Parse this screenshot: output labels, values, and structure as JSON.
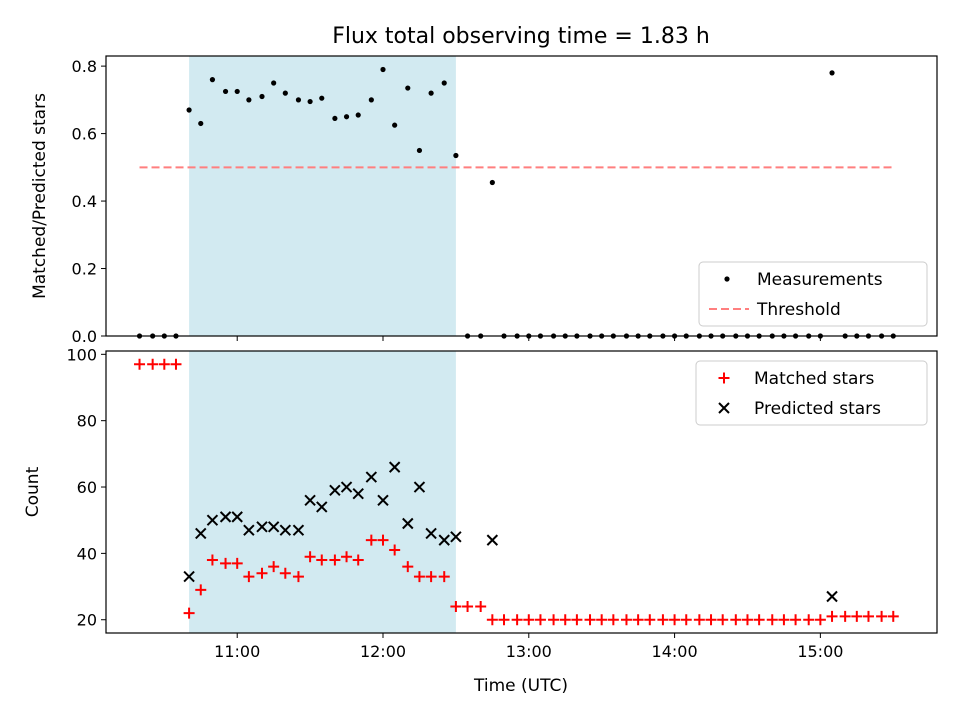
{
  "figure": {
    "title": "Flux total observing time = 1.83 h",
    "xlabel": "Time (UTC)",
    "xticks": [
      {
        "t": 11.0,
        "label": "11:00"
      },
      {
        "t": 12.0,
        "label": "12:00"
      },
      {
        "t": 13.0,
        "label": "13:00"
      },
      {
        "t": 14.0,
        "label": "14:00"
      },
      {
        "t": 15.0,
        "label": "15:00"
      }
    ],
    "xlim_hours": [
      10.1,
      15.8
    ],
    "shaded_window_hours": [
      10.67,
      12.5
    ],
    "colors": {
      "shade": "#add8e6",
      "matched": "#ff0000",
      "predicted": "#000000",
      "threshold": "#ff7f7f",
      "measurements": "#000000"
    }
  },
  "chart_data": [
    {
      "type": "scatter",
      "ylabel": "Matched/Predicted stars",
      "ylim": [
        0,
        0.83
      ],
      "yticks": [
        0.0,
        0.2,
        0.4,
        0.6,
        0.8
      ],
      "ytick_labels": [
        "0.0",
        "0.2",
        "0.4",
        "0.6",
        "0.8"
      ],
      "legend_position": "lower-right",
      "threshold": {
        "name": "Threshold",
        "value": 0.5,
        "x_range": [
          10.33,
          15.5
        ],
        "style": "dashed"
      },
      "series": [
        {
          "name": "Measurements",
          "marker": "dot",
          "points": [
            [
              10.33,
              0
            ],
            [
              10.42,
              0
            ],
            [
              10.5,
              0
            ],
            [
              10.58,
              0
            ],
            [
              10.67,
              0.67
            ],
            [
              10.75,
              0.63
            ],
            [
              10.83,
              0.76
            ],
            [
              10.92,
              0.725
            ],
            [
              11.0,
              0.725
            ],
            [
              11.08,
              0.7
            ],
            [
              11.17,
              0.71
            ],
            [
              11.25,
              0.75
            ],
            [
              11.33,
              0.72
            ],
            [
              11.42,
              0.7
            ],
            [
              11.5,
              0.695
            ],
            [
              11.58,
              0.705
            ],
            [
              11.67,
              0.645
            ],
            [
              11.75,
              0.65
            ],
            [
              11.83,
              0.655
            ],
            [
              11.92,
              0.7
            ],
            [
              12.0,
              0.79
            ],
            [
              12.08,
              0.625
            ],
            [
              12.17,
              0.735
            ],
            [
              12.25,
              0.55
            ],
            [
              12.33,
              0.72
            ],
            [
              12.42,
              0.75
            ],
            [
              12.5,
              0.535
            ],
            [
              12.58,
              0
            ],
            [
              12.67,
              0
            ],
            [
              12.75,
              0.455
            ],
            [
              12.83,
              0
            ],
            [
              12.92,
              0
            ],
            [
              13.0,
              0
            ],
            [
              13.08,
              0
            ],
            [
              13.17,
              0
            ],
            [
              13.25,
              0
            ],
            [
              13.33,
              0
            ],
            [
              13.42,
              0
            ],
            [
              13.5,
              0
            ],
            [
              13.58,
              0
            ],
            [
              13.67,
              0
            ],
            [
              13.75,
              0
            ],
            [
              13.83,
              0
            ],
            [
              13.92,
              0
            ],
            [
              14.0,
              0
            ],
            [
              14.08,
              0
            ],
            [
              14.17,
              0
            ],
            [
              14.25,
              0
            ],
            [
              14.33,
              0
            ],
            [
              14.42,
              0
            ],
            [
              14.5,
              0
            ],
            [
              14.58,
              0
            ],
            [
              14.67,
              0
            ],
            [
              14.75,
              0
            ],
            [
              14.83,
              0
            ],
            [
              14.92,
              0
            ],
            [
              15.0,
              0
            ],
            [
              15.08,
              0.78
            ],
            [
              15.17,
              0
            ],
            [
              15.25,
              0
            ],
            [
              15.33,
              0
            ],
            [
              15.42,
              0
            ],
            [
              15.5,
              0
            ]
          ]
        }
      ]
    },
    {
      "type": "scatter",
      "ylabel": "Count",
      "ylim": [
        16,
        101
      ],
      "yticks": [
        20,
        40,
        60,
        80,
        100
      ],
      "ytick_labels": [
        "20",
        "40",
        "60",
        "80",
        "100"
      ],
      "legend_position": "upper-right",
      "series": [
        {
          "name": "Matched stars",
          "marker": "plus",
          "points": [
            [
              10.33,
              97
            ],
            [
              10.42,
              97
            ],
            [
              10.5,
              97
            ],
            [
              10.58,
              97
            ],
            [
              10.67,
              22
            ],
            [
              10.75,
              29
            ],
            [
              10.83,
              38
            ],
            [
              10.92,
              37
            ],
            [
              11.0,
              37
            ],
            [
              11.08,
              33
            ],
            [
              11.17,
              34
            ],
            [
              11.25,
              36
            ],
            [
              11.33,
              34
            ],
            [
              11.42,
              33
            ],
            [
              11.5,
              39
            ],
            [
              11.58,
              38
            ],
            [
              11.67,
              38
            ],
            [
              11.75,
              39
            ],
            [
              11.83,
              38
            ],
            [
              11.92,
              44
            ],
            [
              12.0,
              44
            ],
            [
              12.08,
              41
            ],
            [
              12.17,
              36
            ],
            [
              12.25,
              33
            ],
            [
              12.33,
              33
            ],
            [
              12.42,
              33
            ],
            [
              12.5,
              24
            ],
            [
              12.58,
              24
            ],
            [
              12.67,
              24
            ],
            [
              12.75,
              20
            ],
            [
              12.83,
              20
            ],
            [
              12.92,
              20
            ],
            [
              13.0,
              20
            ],
            [
              13.08,
              20
            ],
            [
              13.17,
              20
            ],
            [
              13.25,
              20
            ],
            [
              13.33,
              20
            ],
            [
              13.42,
              20
            ],
            [
              13.5,
              20
            ],
            [
              13.58,
              20
            ],
            [
              13.67,
              20
            ],
            [
              13.75,
              20
            ],
            [
              13.83,
              20
            ],
            [
              13.92,
              20
            ],
            [
              14.0,
              20
            ],
            [
              14.08,
              20
            ],
            [
              14.17,
              20
            ],
            [
              14.25,
              20
            ],
            [
              14.33,
              20
            ],
            [
              14.42,
              20
            ],
            [
              14.5,
              20
            ],
            [
              14.58,
              20
            ],
            [
              14.67,
              20
            ],
            [
              14.75,
              20
            ],
            [
              14.83,
              20
            ],
            [
              14.92,
              20
            ],
            [
              15.0,
              20
            ],
            [
              15.08,
              21
            ],
            [
              15.17,
              21
            ],
            [
              15.25,
              21
            ],
            [
              15.33,
              21
            ],
            [
              15.42,
              21
            ],
            [
              15.5,
              21
            ]
          ]
        },
        {
          "name": "Predicted stars",
          "marker": "x",
          "points": [
            [
              10.67,
              33
            ],
            [
              10.75,
              46
            ],
            [
              10.83,
              50
            ],
            [
              10.92,
              51
            ],
            [
              11.0,
              51
            ],
            [
              11.08,
              47
            ],
            [
              11.17,
              48
            ],
            [
              11.25,
              48
            ],
            [
              11.33,
              47
            ],
            [
              11.42,
              47
            ],
            [
              11.5,
              56
            ],
            [
              11.58,
              54
            ],
            [
              11.67,
              59
            ],
            [
              11.75,
              60
            ],
            [
              11.83,
              58
            ],
            [
              11.92,
              63
            ],
            [
              12.0,
              56
            ],
            [
              12.08,
              66
            ],
            [
              12.17,
              49
            ],
            [
              12.25,
              60
            ],
            [
              12.33,
              46
            ],
            [
              12.42,
              44
            ],
            [
              12.5,
              45
            ],
            [
              12.75,
              44
            ],
            [
              15.08,
              27
            ]
          ]
        }
      ]
    }
  ]
}
